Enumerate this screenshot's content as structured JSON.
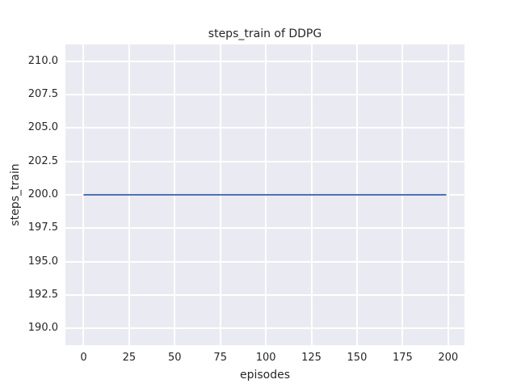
{
  "chart_data": {
    "type": "line",
    "title": "steps_train of DDPG",
    "xlabel": "episodes",
    "ylabel": "steps_train",
    "xlim": [
      -9.95,
      208.95
    ],
    "ylim": [
      188.75,
      211.25
    ],
    "grid": true,
    "legend": null,
    "xticks": [
      {
        "value": 0,
        "label": "0"
      },
      {
        "value": 25,
        "label": "25"
      },
      {
        "value": 50,
        "label": "50"
      },
      {
        "value": 75,
        "label": "75"
      },
      {
        "value": 100,
        "label": "100"
      },
      {
        "value": 125,
        "label": "125"
      },
      {
        "value": 150,
        "label": "150"
      },
      {
        "value": 175,
        "label": "175"
      },
      {
        "value": 200,
        "label": "200"
      }
    ],
    "yticks": [
      {
        "value": 190.0,
        "label": "190.0"
      },
      {
        "value": 192.5,
        "label": "192.5"
      },
      {
        "value": 195.0,
        "label": "195.0"
      },
      {
        "value": 197.5,
        "label": "197.5"
      },
      {
        "value": 200.0,
        "label": "200.0"
      },
      {
        "value": 202.5,
        "label": "202.5"
      },
      {
        "value": 205.0,
        "label": "205.0"
      },
      {
        "value": 207.5,
        "label": "207.5"
      },
      {
        "value": 210.0,
        "label": "210.0"
      }
    ],
    "series": [
      {
        "name": "steps_train",
        "color": "#4c72b0",
        "points": [
          {
            "x": 0,
            "y": 200
          },
          {
            "x": 199,
            "y": 200
          }
        ]
      }
    ]
  },
  "style": {
    "figure_background": "#ffffff",
    "axes_background": "#eaeaf2",
    "grid_color": "#ffffff",
    "text_color": "#262626",
    "line_width": 2
  }
}
